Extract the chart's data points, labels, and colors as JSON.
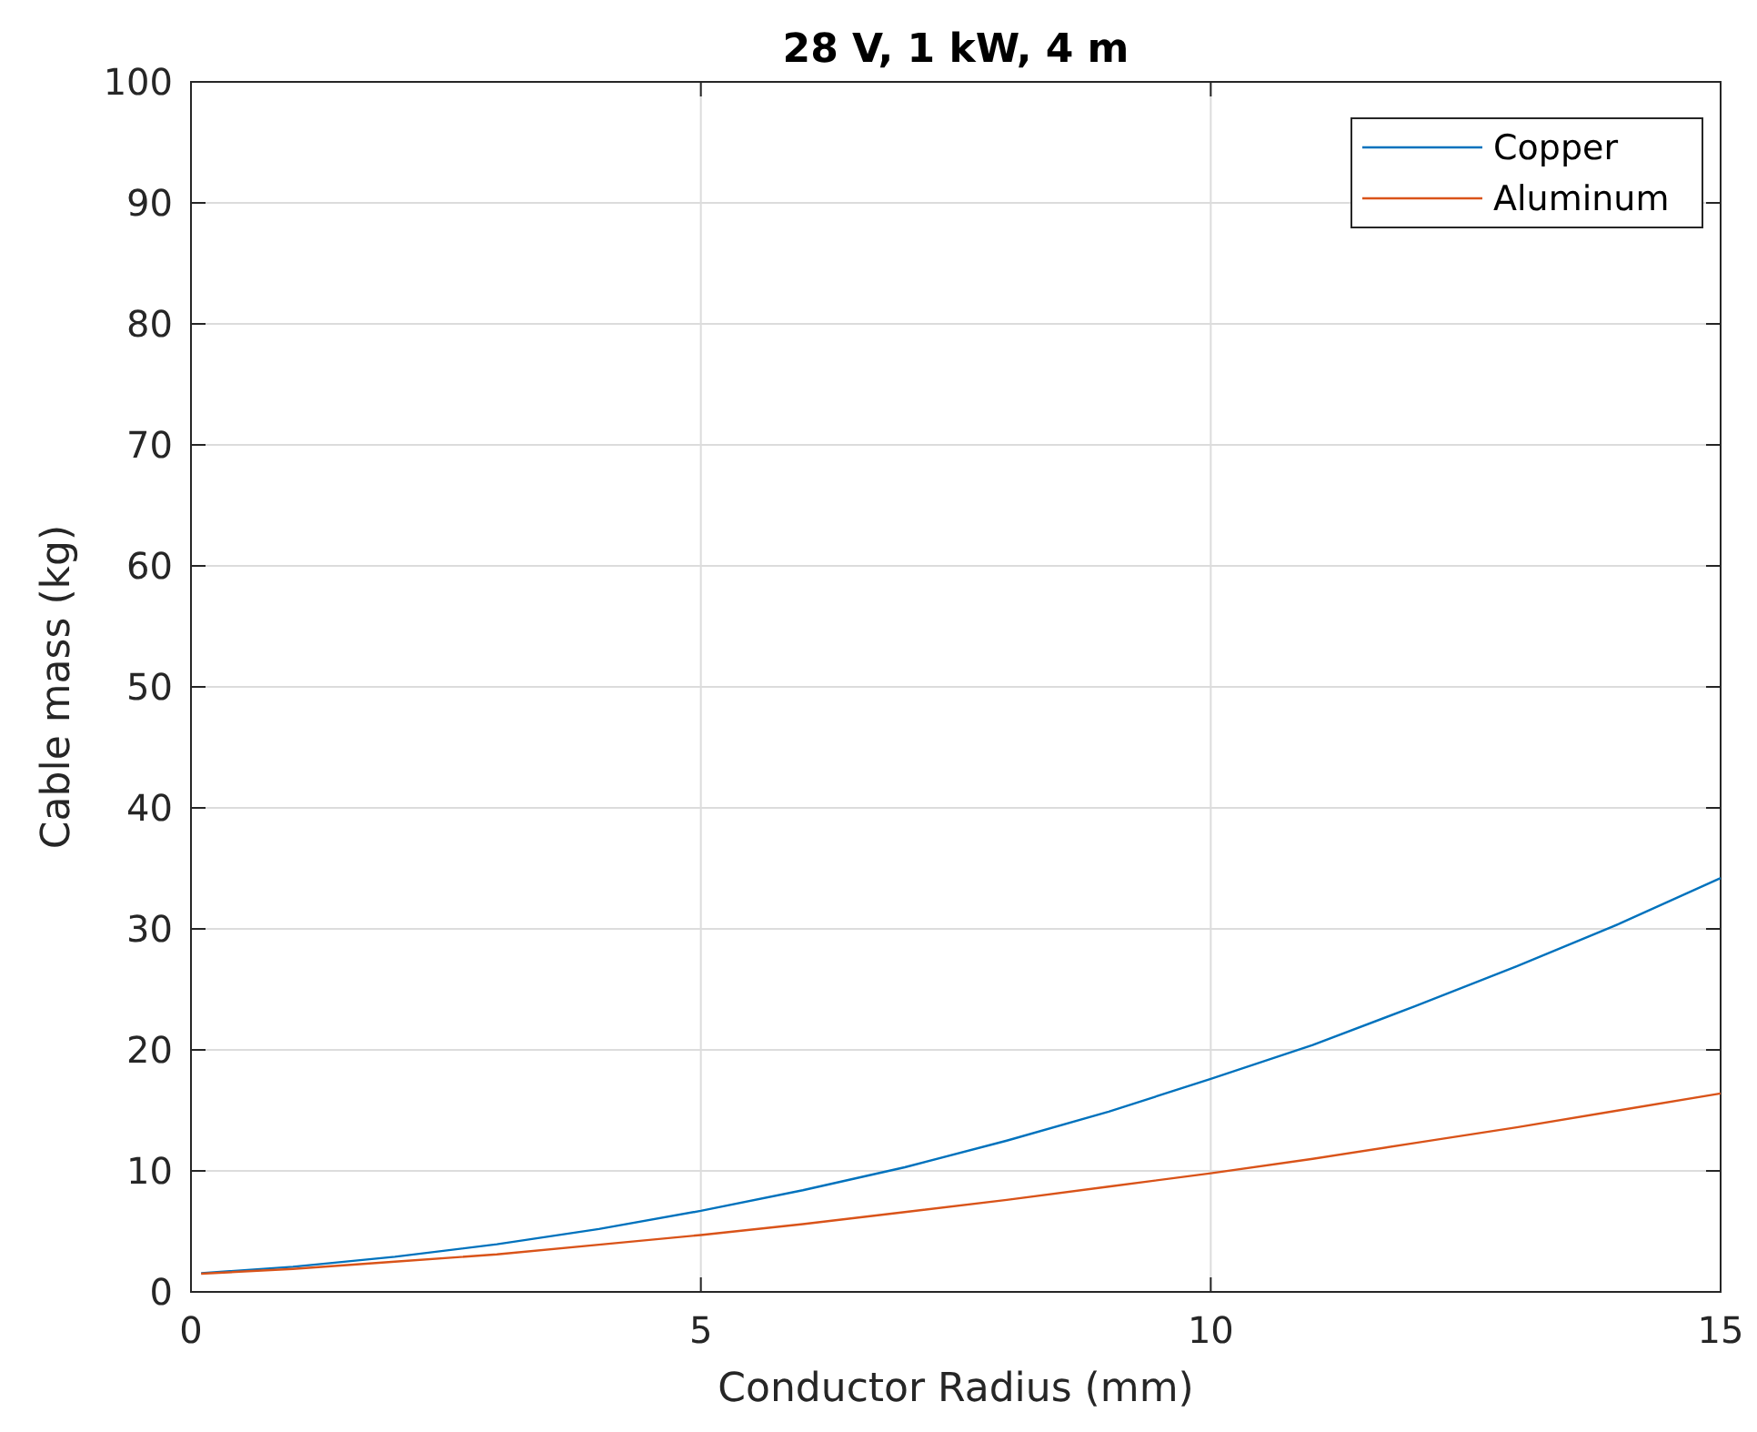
{
  "chart_data": {
    "type": "line",
    "title": "28 V, 1 kW, 4 m",
    "xlabel": "Conductor Radius (mm)",
    "ylabel": "Cable mass (kg)",
    "xlim": [
      0,
      15
    ],
    "xticks": [
      0,
      5,
      10,
      15
    ],
    "ylim": [
      0,
      100
    ],
    "yticks": [
      0,
      10,
      20,
      30,
      40,
      50,
      60,
      70,
      80,
      90,
      100
    ],
    "grid": true,
    "legend": "top right",
    "marker": "none",
    "line_style": "solid",
    "series": [
      {
        "name": "Copper",
        "color": "#0072bd",
        "x": [
          0.1,
          1,
          2,
          3,
          4,
          5,
          6,
          7,
          8,
          9,
          10,
          11,
          12,
          13,
          14,
          15
        ],
        "values": [
          1.55,
          2.08,
          2.9,
          3.94,
          5.2,
          6.7,
          8.4,
          10.3,
          12.5,
          14.9,
          17.6,
          20.4,
          23.6,
          26.9,
          30.4,
          34.2
        ]
      },
      {
        "name": "Aluminum",
        "color": "#d95319",
        "x": [
          0.1,
          1,
          2,
          3,
          4,
          5,
          6,
          7,
          8,
          9,
          10,
          11,
          12,
          13,
          14,
          15
        ],
        "values": [
          1.5,
          1.9,
          2.5,
          3.1,
          3.9,
          4.7,
          5.6,
          6.6,
          7.6,
          8.7,
          9.8,
          11.0,
          12.3,
          13.6,
          15.0,
          16.4
        ]
      }
    ]
  }
}
